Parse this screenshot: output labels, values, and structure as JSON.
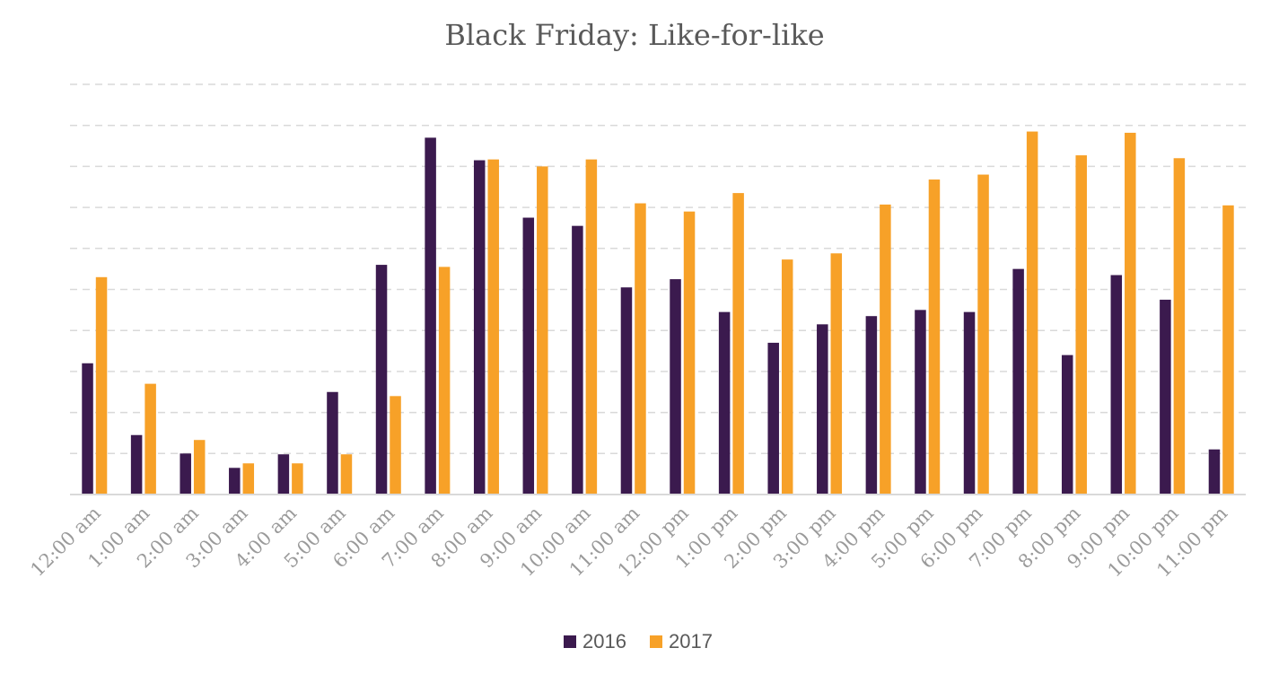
{
  "chart_data": {
    "type": "bar",
    "title": "Black Friday: Like-for-like",
    "xlabel": "",
    "ylabel": "",
    "ylim": [
      0,
      100
    ],
    "grid": true,
    "y_tick_labels_visible": false,
    "legend_position": "bottom",
    "categories": [
      "12:00 am",
      "1:00 am",
      "2:00 am",
      "3:00 am",
      "4:00 am",
      "5:00 am",
      "6:00 am",
      "7:00 am",
      "8:00 am",
      "9:00 am",
      "10:00 am",
      "11:00 am",
      "12:00 pm",
      "1:00 pm",
      "2:00 pm",
      "3:00 pm",
      "4:00 pm",
      "5:00 pm",
      "6:00 pm",
      "7:00 pm",
      "8:00 pm",
      "9:00 pm",
      "10:00 pm",
      "11:00 pm"
    ],
    "series": [
      {
        "name": "2016",
        "color": "#3b1a4e",
        "values": [
          32,
          14.5,
          10,
          6.5,
          9.8,
          25,
          56,
          87,
          81.5,
          67.5,
          65.5,
          50.5,
          52.5,
          44.5,
          37,
          41.5,
          43.5,
          45,
          44.5,
          55,
          34,
          53.5,
          47.5,
          11
        ]
      },
      {
        "name": "2017",
        "color": "#f7a128",
        "values": [
          53,
          27,
          13.3,
          7.6,
          7.6,
          9.8,
          24,
          55.5,
          81.7,
          80,
          81.7,
          71,
          69,
          73.5,
          57.3,
          58.8,
          70.7,
          76.8,
          78,
          88.5,
          82.7,
          88.2,
          82,
          70.5
        ]
      }
    ]
  }
}
